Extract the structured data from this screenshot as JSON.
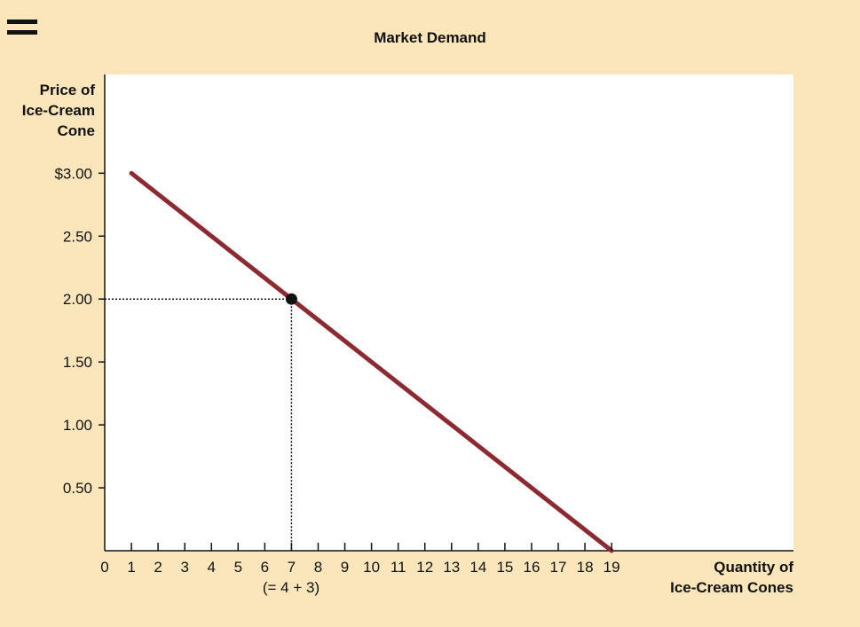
{
  "badge": "=",
  "chart_data": {
    "type": "line",
    "title": "Market Demand",
    "ylabel": [
      "Price of",
      "Ice-Cream",
      "Cone"
    ],
    "xlabel": [
      "Quantity of",
      "Ice-Cream Cones"
    ],
    "x_ticks": [
      "0",
      "1",
      "2",
      "3",
      "4",
      "5",
      "6",
      "7",
      "8",
      "9",
      "10",
      "11",
      "12",
      "13",
      "14",
      "15",
      "16",
      "17",
      "18",
      "19"
    ],
    "x_tick_values": [
      0,
      1,
      2,
      3,
      4,
      5,
      6,
      7,
      8,
      9,
      10,
      11,
      12,
      13,
      14,
      15,
      16,
      17,
      18,
      19
    ],
    "x_annotation": "(= 4 + 3)",
    "y_ticks": [
      "0.50",
      "1.00",
      "1.50",
      "2.00",
      "2.50",
      "$3.00"
    ],
    "y_tick_values": [
      0.5,
      1.0,
      1.5,
      2.0,
      2.5,
      3.0
    ],
    "xlim": [
      0,
      19
    ],
    "ylim": [
      0,
      3.5
    ],
    "series": [
      {
        "x": [
          1,
          19
        ],
        "y": [
          3.0,
          0.0
        ],
        "color": "#8b2a31"
      }
    ],
    "highlight_point": {
      "x": 7,
      "y": 2.0
    },
    "grid": false,
    "colors": {
      "demand_line": "#8b2a31",
      "background": "#fbe6bb",
      "plot_area": "#ffffff",
      "axis": "#111111"
    }
  }
}
